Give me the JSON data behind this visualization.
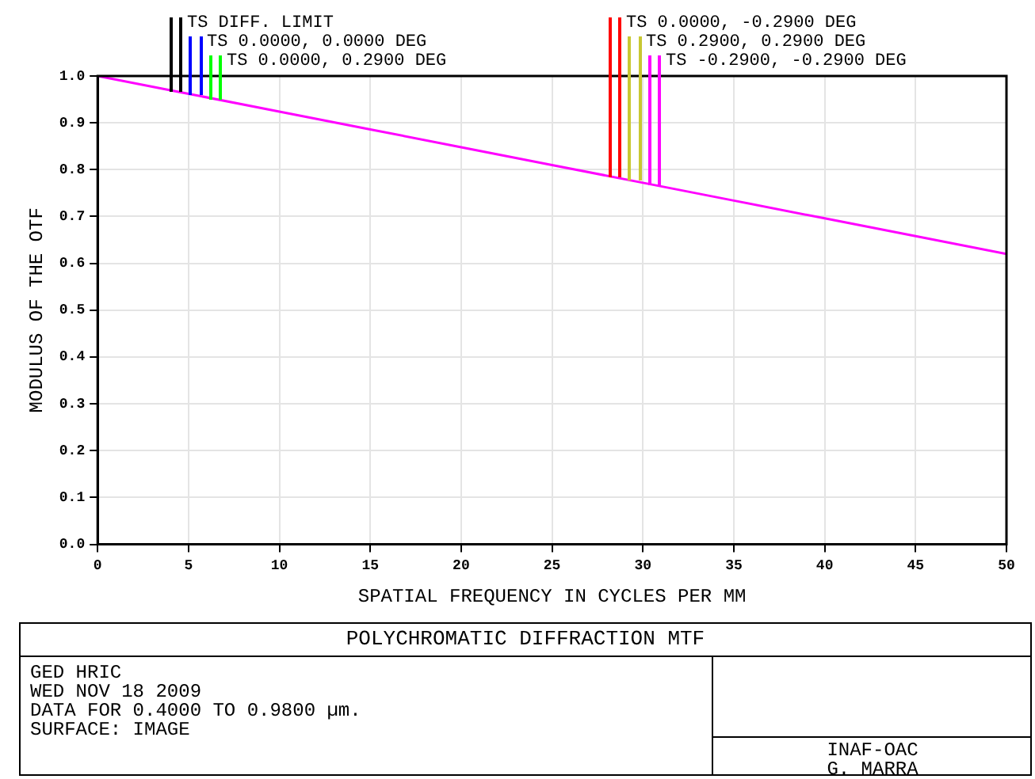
{
  "chart_data": {
    "type": "line",
    "title": "POLYCHROMATIC DIFFRACTION MTF",
    "xlabel": "SPATIAL FREQUENCY IN CYCLES PER MM",
    "ylabel": "MODULUS OF THE OTF",
    "x": [
      0,
      5,
      10,
      15,
      20,
      25,
      30,
      35,
      40,
      45,
      50
    ],
    "series": [
      {
        "name": "TS DIFF. LIMIT",
        "color": "#000000",
        "values": [
          null,
          null,
          null,
          null,
          null,
          null,
          null,
          null,
          null,
          null,
          null
        ]
      },
      {
        "name": "TS 0.0000, 0.0000 DEG",
        "color": "#0000ff",
        "values": [
          null,
          null,
          null,
          null,
          null,
          null,
          null,
          null,
          null,
          null,
          null
        ]
      },
      {
        "name": "TS 0.0000, 0.2900 DEG",
        "color": "#00ff00",
        "values": [
          null,
          null,
          null,
          null,
          null,
          null,
          null,
          null,
          null,
          null,
          null
        ]
      },
      {
        "name": "TS 0.0000, -0.2900 DEG",
        "color": "#ff0000",
        "values": [
          null,
          null,
          null,
          null,
          null,
          null,
          null,
          null,
          null,
          null,
          null
        ]
      },
      {
        "name": "TS 0.2900, 0.2900 DEG",
        "color": "#c8c832",
        "values": [
          null,
          null,
          null,
          null,
          null,
          null,
          null,
          null,
          null,
          null,
          null
        ]
      },
      {
        "name": "TS -0.2900, -0.2900 DEG",
        "color": "#ff00ff",
        "values": [
          1.0,
          0.962,
          0.924,
          0.886,
          0.848,
          0.81,
          0.772,
          0.734,
          0.696,
          0.658,
          0.62
        ]
      }
    ],
    "xlim": [
      0,
      50
    ],
    "xticks": [
      0,
      5,
      10,
      15,
      20,
      25,
      30,
      35,
      40,
      45,
      50
    ],
    "ylim": [
      0,
      1
    ],
    "yticks": [
      {
        "value": 0,
        "label": "0.0"
      },
      0.1,
      0.2,
      0.3,
      0.4,
      0.5,
      0.6,
      0.7,
      0.8,
      0.9,
      {
        "value": 1,
        "label": "1.0"
      }
    ],
    "grid": true,
    "legend": "top",
    "marker": "none",
    "line_style": "solid",
    "annotations": [
      "GED HRIC",
      "WED NOV 18 2009",
      "DATA FOR 0.4000 TO 0.9800 µm.",
      "SURFACE: IMAGE",
      "INAF-OAC",
      "G. MARRA"
    ]
  }
}
